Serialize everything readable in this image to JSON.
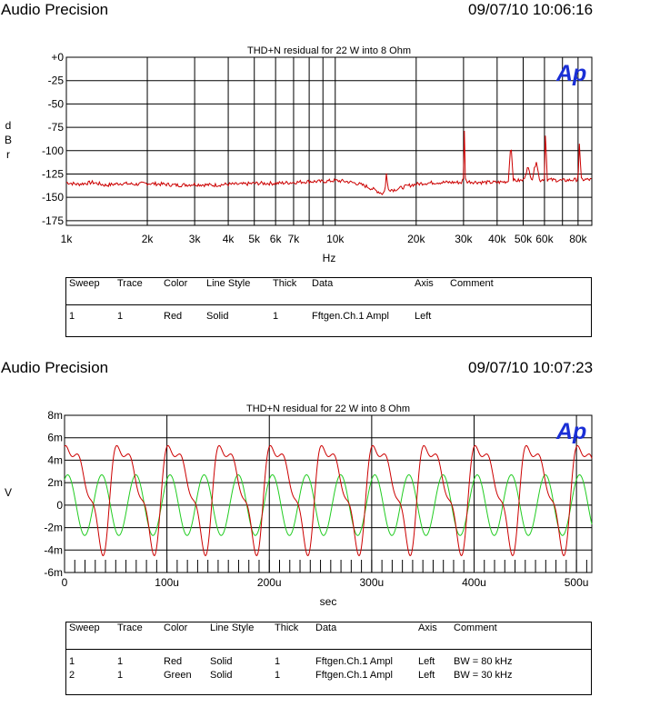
{
  "header1": {
    "brand": "Audio Precision",
    "timestamp": "09/07/10 10:06:16"
  },
  "header2": {
    "brand": "Audio Precision",
    "timestamp": "09/07/10 10:07:23"
  },
  "logo_text": "Ap",
  "colors": {
    "red": "#cc0000",
    "green": "#22cc22",
    "logo": "#1a2fd6",
    "grid": "#000000"
  },
  "chart_data": [
    {
      "type": "line",
      "title": "THD+N residual for 22 W into 8 Ohm",
      "xlabel": "Hz",
      "ylabel": "dBr",
      "xscale": "log",
      "xlim": [
        1000,
        90000
      ],
      "ylim": [
        -180,
        0
      ],
      "grid": true,
      "x_ticks": [
        1000,
        2000,
        3000,
        4000,
        5000,
        6000,
        7000,
        10000,
        20000,
        30000,
        40000,
        50000,
        60000,
        80000
      ],
      "x_tick_labels": [
        "1k",
        "2k",
        "3k",
        "4k",
        "5k",
        "6k",
        "7k",
        "10k",
        "20k",
        "30k",
        "40k",
        "50k",
        "60k",
        "80k"
      ],
      "y_ticks": [
        0,
        -25,
        -50,
        -75,
        -100,
        -125,
        -150,
        -175
      ],
      "y_tick_labels": [
        "+0",
        "-25",
        "-50",
        "-75",
        "-100",
        "-125",
        "-150",
        "-175"
      ],
      "series": [
        {
          "color": "red",
          "points": [
            [
              1000,
              -134
            ],
            [
              1100,
              -136
            ],
            [
              1250,
              -134
            ],
            [
              1400,
              -137
            ],
            [
              1600,
              -135
            ],
            [
              1800,
              -136
            ],
            [
              2000,
              -135
            ],
            [
              2300,
              -136
            ],
            [
              2600,
              -137
            ],
            [
              3000,
              -136
            ],
            [
              3500,
              -137
            ],
            [
              4000,
              -136
            ],
            [
              4500,
              -136
            ],
            [
              5000,
              -135
            ],
            [
              6000,
              -135
            ],
            [
              7000,
              -134
            ],
            [
              8000,
              -133
            ],
            [
              9000,
              -133
            ],
            [
              10000,
              -132
            ],
            [
              11000,
              -133
            ],
            [
              12000,
              -135
            ],
            [
              13000,
              -138
            ],
            [
              14000,
              -142
            ],
            [
              14500,
              -144
            ],
            [
              15000,
              -146
            ],
            [
              15300,
              -143
            ],
            [
              15500,
              -124
            ],
            [
              15700,
              -141
            ],
            [
              16500,
              -142
            ],
            [
              17500,
              -140
            ],
            [
              19000,
              -137
            ],
            [
              21000,
              -135
            ],
            [
              24000,
              -134
            ],
            [
              27000,
              -134
            ],
            [
              29500,
              -134
            ],
            [
              30000,
              -130
            ],
            [
              30200,
              -76
            ],
            [
              30500,
              -133
            ],
            [
              35000,
              -134
            ],
            [
              40000,
              -134
            ],
            [
              44000,
              -133
            ],
            [
              45000,
              -92
            ],
            [
              46000,
              -132
            ],
            [
              50000,
              -132
            ],
            [
              52000,
              -118
            ],
            [
              54000,
              -131
            ],
            [
              56000,
              -110
            ],
            [
              57500,
              -132
            ],
            [
              60000,
              -130
            ],
            [
              60500,
              -80
            ],
            [
              61500,
              -131
            ],
            [
              70000,
              -132
            ],
            [
              80000,
              -131
            ],
            [
              81000,
              -88
            ],
            [
              82000,
              -131
            ],
            [
              90000,
              -131
            ]
          ]
        }
      ],
      "legend": {
        "headers": [
          "Sweep",
          "Trace",
          "Color",
          "Line Style",
          "Thick",
          "Data",
          "Axis",
          "Comment"
        ],
        "rows": [
          [
            "1",
            "1",
            "Red",
            "Solid",
            "1",
            "Fftgen.Ch.1 Ampl",
            "Left",
            ""
          ]
        ]
      }
    },
    {
      "type": "line",
      "title": "THD+N residual for 22 W into 8 Ohm",
      "xlabel": "sec",
      "ylabel": "V",
      "xlim": [
        0,
        0.000515
      ],
      "ylim": [
        -0.006,
        0.008
      ],
      "grid": true,
      "x_ticks": [
        0,
        0.0001,
        0.0002,
        0.0003,
        0.0004,
        0.0005
      ],
      "x_tick_labels": [
        "0",
        "100u",
        "200u",
        "300u",
        "400u",
        "500u"
      ],
      "y_ticks": [
        0.008,
        0.006,
        0.004,
        0.002,
        0,
        -0.002,
        -0.004,
        -0.006
      ],
      "y_tick_labels": [
        "8m",
        "6m",
        "4m",
        "2m",
        "0",
        "-2m",
        "-4m",
        "-6m"
      ],
      "series": [
        {
          "color": "red",
          "comment": "BW = 80 kHz",
          "fundamental_hz": 20000,
          "peak": 0.0053,
          "trough": -0.0045
        },
        {
          "color": "green",
          "comment": "BW = 30 kHz",
          "fundamental_hz": 30000,
          "amplitude": 0.0027
        }
      ],
      "legend": {
        "headers": [
          "Sweep",
          "Trace",
          "Color",
          "Line Style",
          "Thick",
          "Data",
          "Axis",
          "Comment"
        ],
        "rows": [
          [
            "1",
            "1",
            "Red",
            "Solid",
            "1",
            "Fftgen.Ch.1 Ampl",
            "Left",
            "BW = 80 kHz"
          ],
          [
            "2",
            "1",
            "Green",
            "Solid",
            "1",
            "Fftgen.Ch.1 Ampl",
            "Left",
            "BW = 30 kHz"
          ]
        ]
      }
    }
  ]
}
